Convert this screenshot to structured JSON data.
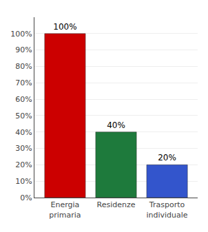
{
  "chart_data": {
    "type": "bar",
    "categories": [
      "Energia\nprimaria",
      "Residenze",
      "Trasporto\nindividuale"
    ],
    "values": [
      100,
      40,
      20
    ],
    "value_labels": [
      "100%",
      "40%",
      "20%"
    ],
    "data_labels": true,
    "colors": [
      "#cc0000",
      "#1e7a3c",
      "#3355cc"
    ],
    "ylim": [
      0,
      110
    ],
    "yticks": [
      {
        "value": 0,
        "label": "0%"
      },
      {
        "value": 10,
        "label": "10%"
      },
      {
        "value": 20,
        "label": "20%"
      },
      {
        "value": 30,
        "label": "30%"
      },
      {
        "value": 40,
        "label": "40%"
      },
      {
        "value": 50,
        "label": "50%"
      },
      {
        "value": 60,
        "label": "60%"
      },
      {
        "value": 70,
        "label": "70%"
      },
      {
        "value": 80,
        "label": "80%"
      },
      {
        "value": 90,
        "label": "90%"
      },
      {
        "value": 100,
        "label": "100%"
      }
    ],
    "grid": true
  }
}
